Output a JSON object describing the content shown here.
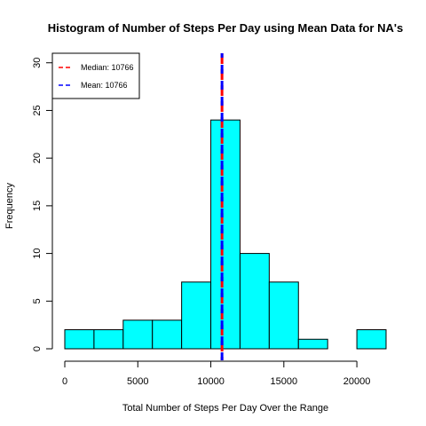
{
  "chart_data": {
    "type": "bar",
    "title": "Histogram of Number of Steps Per Day using Mean Data for NA's",
    "xlabel": "Total Number of Steps Per Day Over the Range",
    "ylabel": "Frequency",
    "bin_edges": [
      0,
      2000,
      4000,
      6000,
      8000,
      10000,
      12000,
      14000,
      16000,
      18000,
      20000,
      22000
    ],
    "values": [
      2,
      2,
      3,
      3,
      7,
      24,
      10,
      7,
      1,
      0,
      2
    ],
    "bar_color": "#00FFFF",
    "xlim": [
      0,
      22000
    ],
    "ylim": [
      0,
      31
    ],
    "x_ticks": [
      0,
      5000,
      10000,
      15000,
      20000
    ],
    "x_tick_labels": [
      "0",
      "5000",
      "10000",
      "15000",
      "20000"
    ],
    "y_ticks": [
      0,
      5,
      10,
      15,
      20,
      25,
      30
    ],
    "y_tick_labels": [
      "0",
      "5",
      "10",
      "15",
      "20",
      "25",
      "30"
    ],
    "vlines": [
      {
        "x": 10766,
        "color": "#FF0000",
        "style": "dashed"
      },
      {
        "x": 10766,
        "color": "#0000FF",
        "style": "dashed"
      }
    ],
    "legend": {
      "position": "top-left",
      "entries": [
        {
          "label": "Median:  10766",
          "color": "#FF0000"
        },
        {
          "label": "Mean:  10766",
          "color": "#0000FF"
        }
      ]
    },
    "grid": false
  }
}
